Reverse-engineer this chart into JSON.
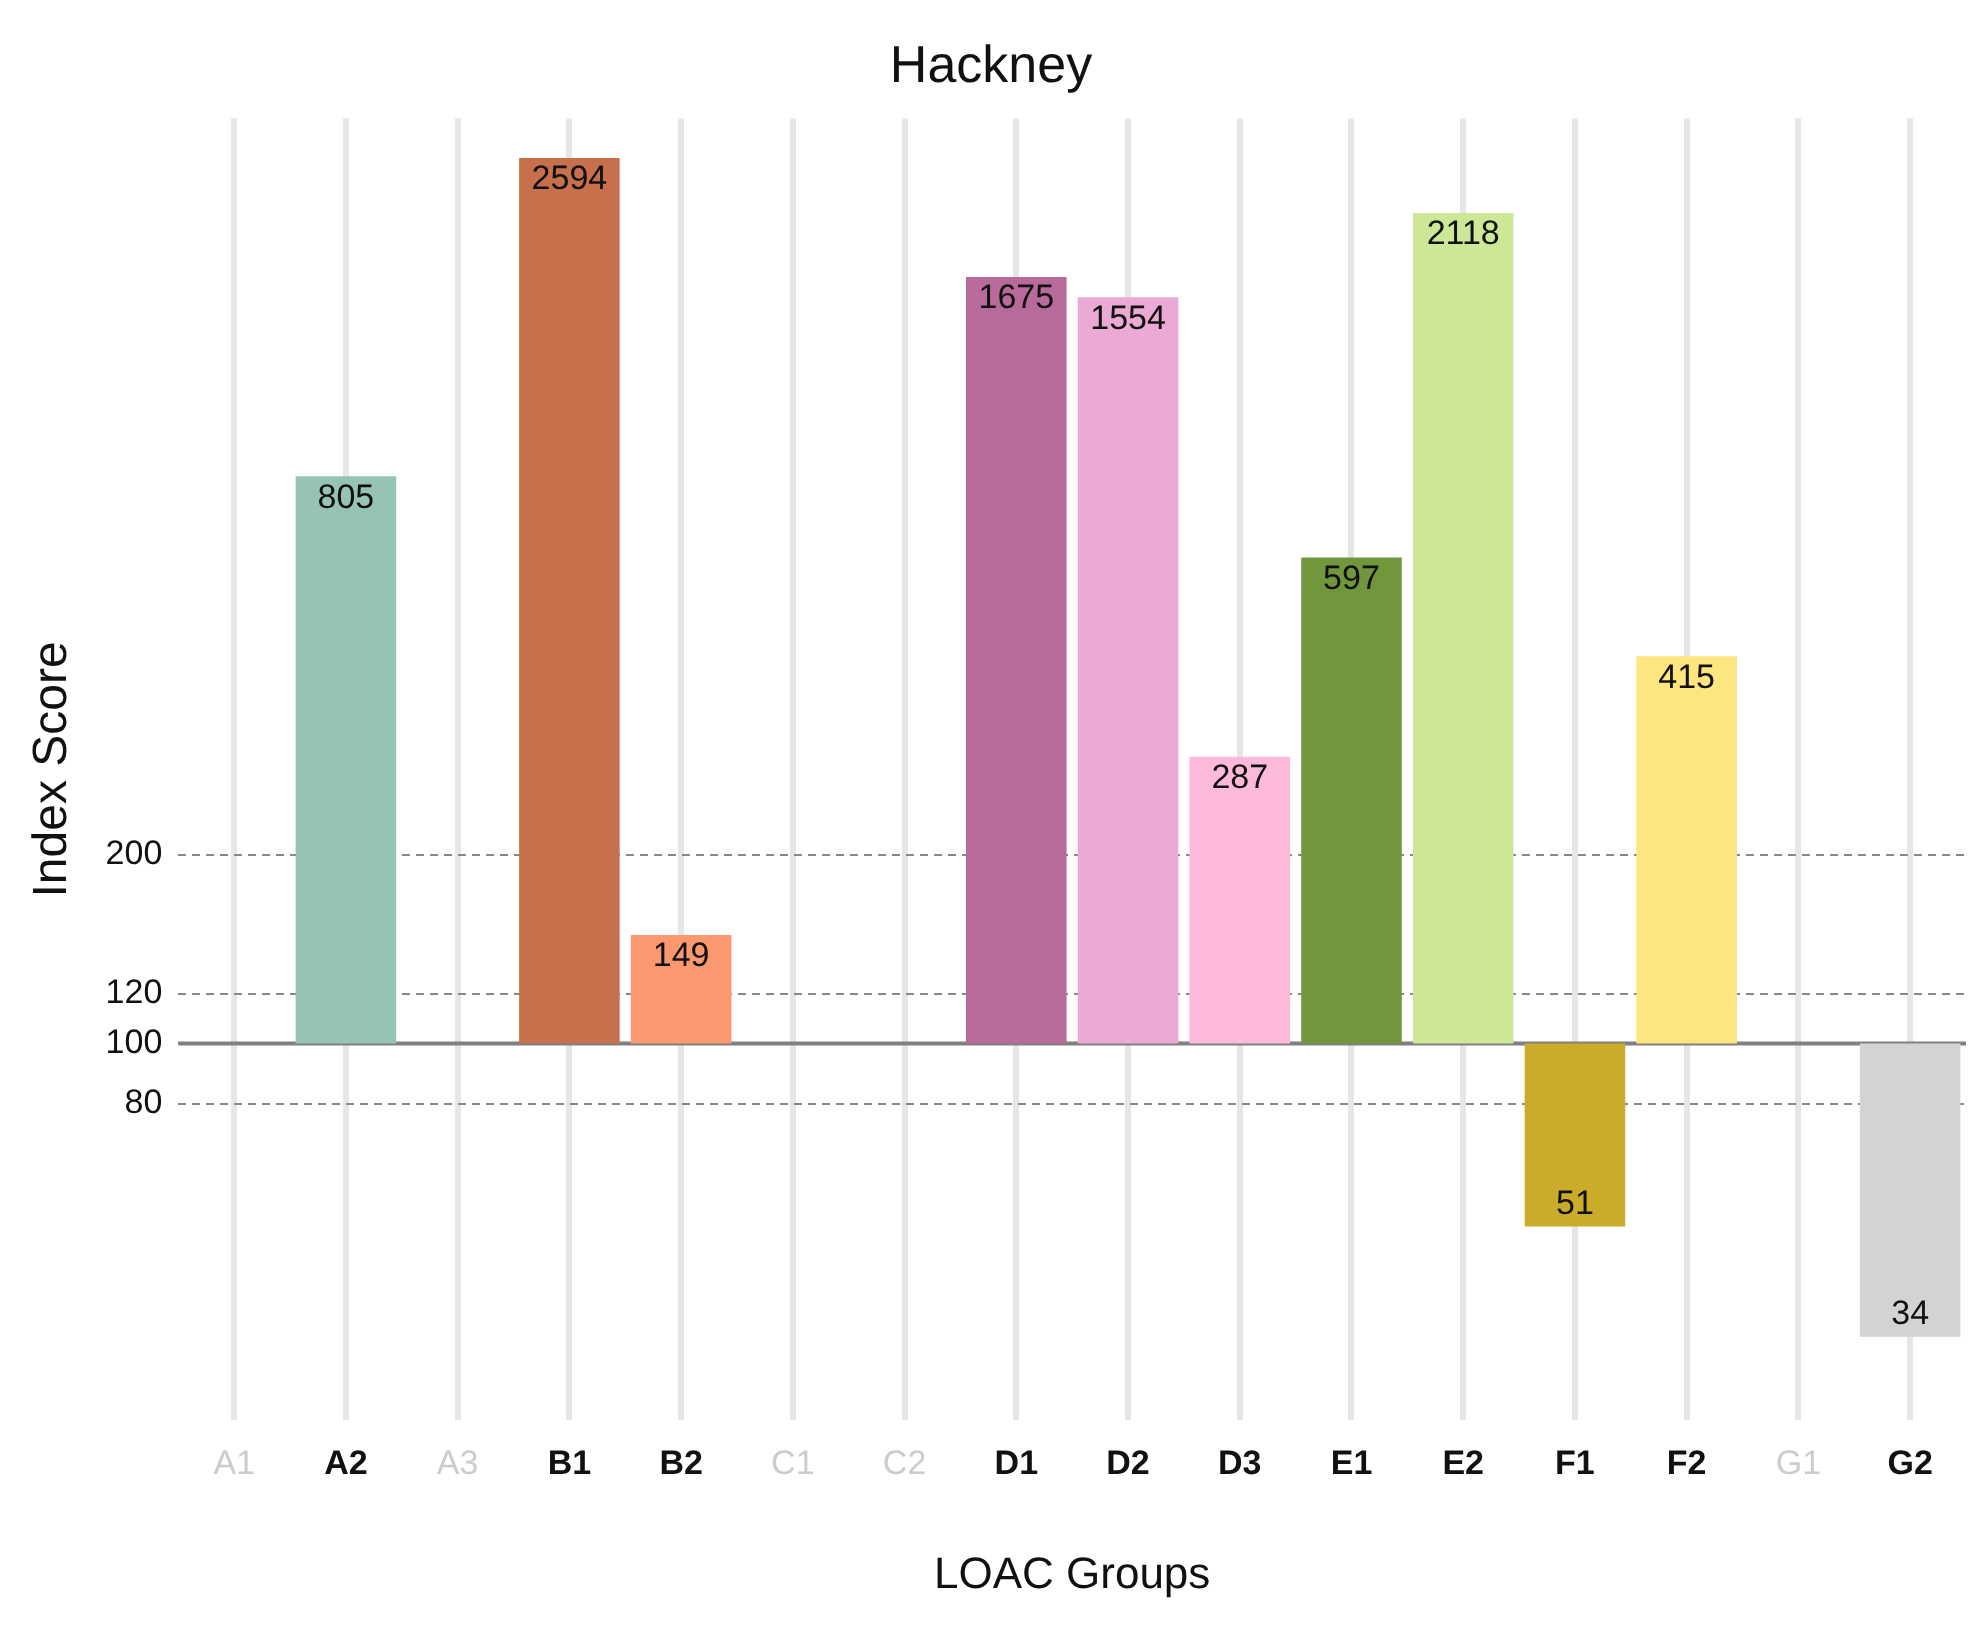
{
  "chart_data": {
    "type": "bar",
    "title": "Hackney",
    "xlabel": "LOAC Groups",
    "ylabel": "Index Score",
    "categories": [
      "A1",
      "A2",
      "A3",
      "B1",
      "B2",
      "C1",
      "C2",
      "D1",
      "D2",
      "D3",
      "E1",
      "E2",
      "F1",
      "F2",
      "G1",
      "G2"
    ],
    "base": [
      null,
      100,
      null,
      100,
      100,
      null,
      null,
      100,
      100,
      100,
      100,
      100,
      100,
      100,
      null,
      100
    ],
    "values": [
      null,
      705,
      null,
      2494,
      49,
      null,
      null,
      1575,
      1454,
      187,
      497,
      2018,
      -49,
      315,
      null,
      -66
    ],
    "value_labels": [
      null,
      "805",
      null,
      "2594",
      "149",
      null,
      null,
      "1675",
      "1554",
      "287",
      "597",
      "2118",
      "51",
      "415",
      null,
      "34"
    ],
    "colors": [
      "#d3d3d3",
      "#96c3b4",
      "#d3d3d3",
      "#c8704c",
      "#fc9870",
      "#d3d3d3",
      "#d3d3d3",
      "#b86a9a",
      "#ebaad4",
      "#fdb9da",
      "#72963c",
      "#cce796",
      "#cbab2a",
      "#fde57f",
      "#d3d3d3",
      "#d3d3d3"
    ],
    "log": true,
    "ylim": [
      25,
      3000
    ],
    "yticks": [
      80,
      100,
      120,
      200
    ],
    "ref_lines": [
      {
        "axis": "y",
        "value": 100,
        "color": "#808080"
      }
    ],
    "grid": true,
    "legend": false
  }
}
